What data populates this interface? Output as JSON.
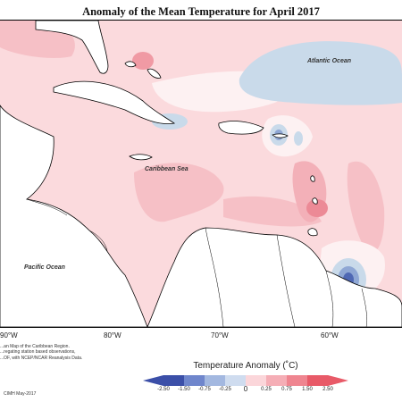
{
  "title": "Anomaly of the Mean Temperature for April 2017",
  "ocean_labels": {
    "atlantic": "Atlantic Ocean",
    "caribbean": "Caribbean Sea",
    "pacific": "Pacific Ocean"
  },
  "longitude_labels": [
    "90°W",
    "80°W",
    "70°W",
    "60°W"
  ],
  "legend": {
    "title": "Temperature Anomaly (˚C)",
    "ticks": [
      "-2.50",
      "-1.50",
      "-0.75",
      "-0.25",
      "0",
      "0.25",
      "0.75",
      "1.50",
      "2.50"
    ],
    "colors": [
      "#3b4fa8",
      "#6f86cc",
      "#a3b8e0",
      "#cfdcef",
      "#ffffff",
      "#fbd6da",
      "#f5aeb6",
      "#ef8590",
      "#e85a68"
    ]
  },
  "credits": {
    "lines": [
      "...an Map of the Caribbean Region.",
      "...regating station based observations,",
      "...OF, with NCEP/NCAR Reanalysis Data."
    ],
    "date": "CIMH May-2017"
  }
}
